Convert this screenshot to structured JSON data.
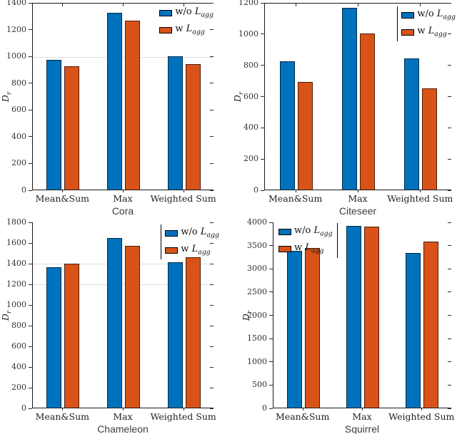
{
  "figure": {
    "background": "#ffffff",
    "axis_color": "#1a1a1a",
    "gridline_color": "#dedede",
    "series_colors": {
      "without_agg": "#0072BD",
      "with_agg": "#D95319"
    }
  },
  "chart_data": [
    {
      "type": "bar",
      "dataset": "Cora",
      "xlabel": "Cora",
      "ylabel": "D_r",
      "categories": [
        "Mean&Sum",
        "Max",
        "Weighted Sum"
      ],
      "series": [
        {
          "name": "w/o L_agg",
          "color": "#0072BD",
          "values": [
            970,
            1320,
            995
          ]
        },
        {
          "name": "w L_agg",
          "color": "#D95319",
          "values": [
            920,
            1260,
            935
          ]
        }
      ],
      "ylim": [
        0,
        1400
      ],
      "ytick_step": 200,
      "gridlines_visible": [
        1000
      ],
      "legend": {
        "position": "top-right",
        "border": "none"
      }
    },
    {
      "type": "bar",
      "dataset": "Citeseer",
      "xlabel": "Citeseer",
      "ylabel": "D_r",
      "categories": [
        "Mean&Sum",
        "Max",
        "Weighted Sum"
      ],
      "series": [
        {
          "name": "w/o L_agg",
          "color": "#0072BD",
          "values": [
            820,
            1165,
            840
          ]
        },
        {
          "name": "w L_agg",
          "color": "#D95319",
          "values": [
            690,
            1000,
            650
          ]
        }
      ],
      "ylim": [
        0,
        1200
      ],
      "ytick_step": 200,
      "gridlines_visible": [],
      "legend": {
        "position": "top-right",
        "border": "left"
      }
    },
    {
      "type": "bar",
      "dataset": "Chameleon",
      "xlabel": "Chameleon",
      "ylabel": "D_r",
      "categories": [
        "Mean&Sum",
        "Max",
        "Weighted Sum"
      ],
      "series": [
        {
          "name": "w/o L_agg",
          "color": "#0072BD",
          "values": [
            1360,
            1640,
            1405
          ]
        },
        {
          "name": "w L_agg",
          "color": "#D95319",
          "values": [
            1395,
            1565,
            1455
          ]
        }
      ],
      "ylim": [
        0,
        1800
      ],
      "ytick_step": 200,
      "gridlines_visible": [
        1400,
        1200
      ],
      "legend": {
        "position": "top-right",
        "border": "left"
      }
    },
    {
      "type": "bar",
      "dataset": "Squirrel",
      "xlabel": "Squirrel",
      "ylabel": "D_r",
      "categories": [
        "Mean&Sum",
        "Max",
        "Weighted Sum"
      ],
      "series": [
        {
          "name": "w/o L_agg",
          "color": "#0072BD",
          "values": [
            3370,
            3910,
            3330
          ]
        },
        {
          "name": "w L_agg",
          "color": "#D95319",
          "values": [
            3430,
            3900,
            3570
          ]
        }
      ],
      "ylim": [
        0,
        4000
      ],
      "ytick_step": 500,
      "gridlines_visible": [],
      "legend": {
        "position": "top-left",
        "border": "right"
      }
    }
  ]
}
